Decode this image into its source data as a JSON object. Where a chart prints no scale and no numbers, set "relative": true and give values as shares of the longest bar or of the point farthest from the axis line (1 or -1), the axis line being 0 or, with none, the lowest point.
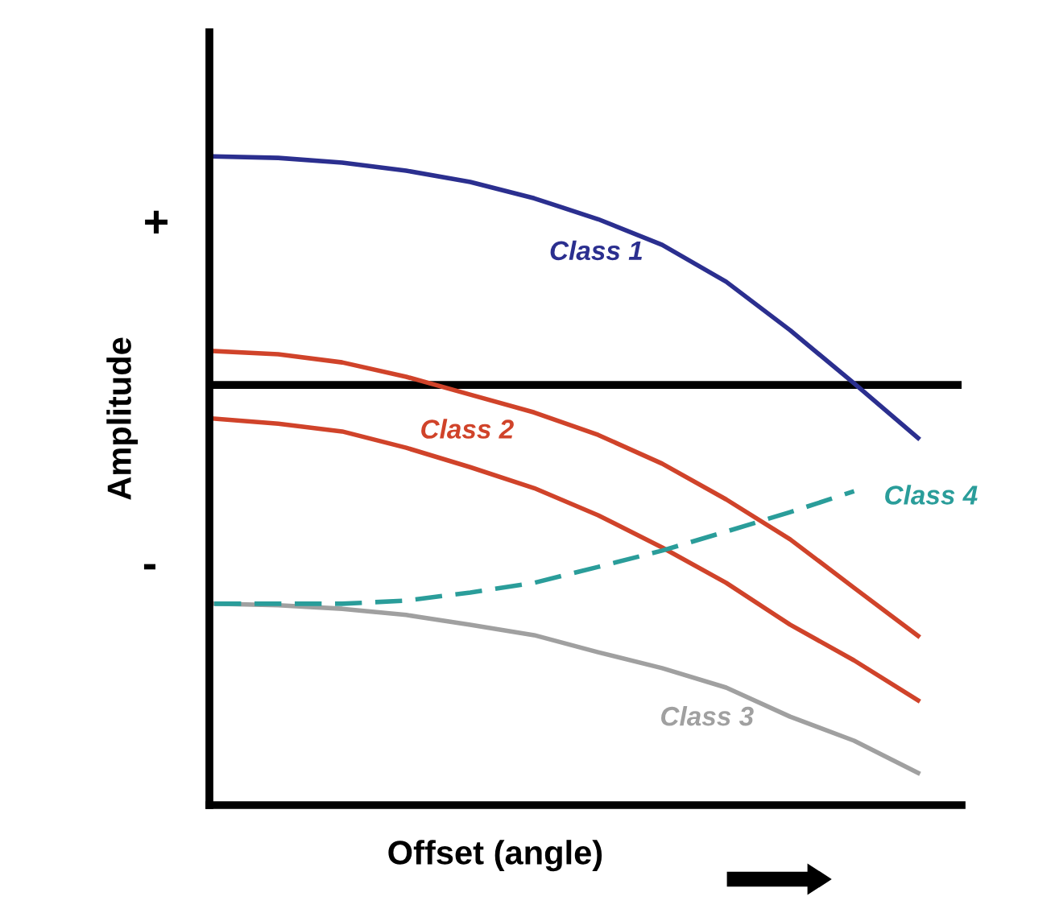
{
  "chart_data": {
    "type": "line",
    "relative": true,
    "xlabel": "Offset (angle)",
    "ylabel": "Amplitude",
    "categories": [
      null,
      null,
      null,
      null,
      null,
      null,
      null,
      null,
      null,
      null,
      null,
      null
    ],
    "series": [
      {
        "name": "Class 1",
        "color": "#2b2f8f",
        "line_style": "solid",
        "values": [
          0.589,
          0.585,
          0.573,
          0.552,
          0.523,
          0.481,
          0.427,
          0.361,
          0.266,
          0.141,
          0.004,
          -0.137
        ]
      },
      {
        "name": "Class 2",
        "color": "#d0432a",
        "line_style": "solid",
        "values": [
          0.087,
          0.079,
          0.058,
          0.021,
          -0.025,
          -0.071,
          -0.129,
          -0.203,
          -0.295,
          -0.398,
          -0.523,
          -0.647
        ]
      },
      {
        "color": "#d0432a",
        "line_style": "solid",
        "values": [
          -0.087,
          -0.1,
          -0.12,
          -0.162,
          -0.212,
          -0.266,
          -0.336,
          -0.419,
          -0.51,
          -0.618,
          -0.71,
          -0.813
        ]
      },
      {
        "name": "Class 3",
        "color": "#a0a0a0",
        "line_style": "solid",
        "values": [
          -0.564,
          -0.568,
          -0.577,
          -0.593,
          -0.618,
          -0.645,
          -0.689,
          -0.73,
          -0.78,
          -0.855,
          -0.917,
          -1.0
        ]
      },
      {
        "name": "Class 4",
        "color": "#2a9d9a",
        "line_style": "dashed",
        "values": [
          -0.564,
          -0.564,
          -0.564,
          -0.556,
          -0.535,
          -0.51,
          -0.469,
          -0.427,
          -0.378,
          -0.328,
          -0.274,
          null
        ]
      }
    ],
    "annotations": [
      "+",
      "-"
    ],
    "legend": false,
    "marker": "none"
  }
}
